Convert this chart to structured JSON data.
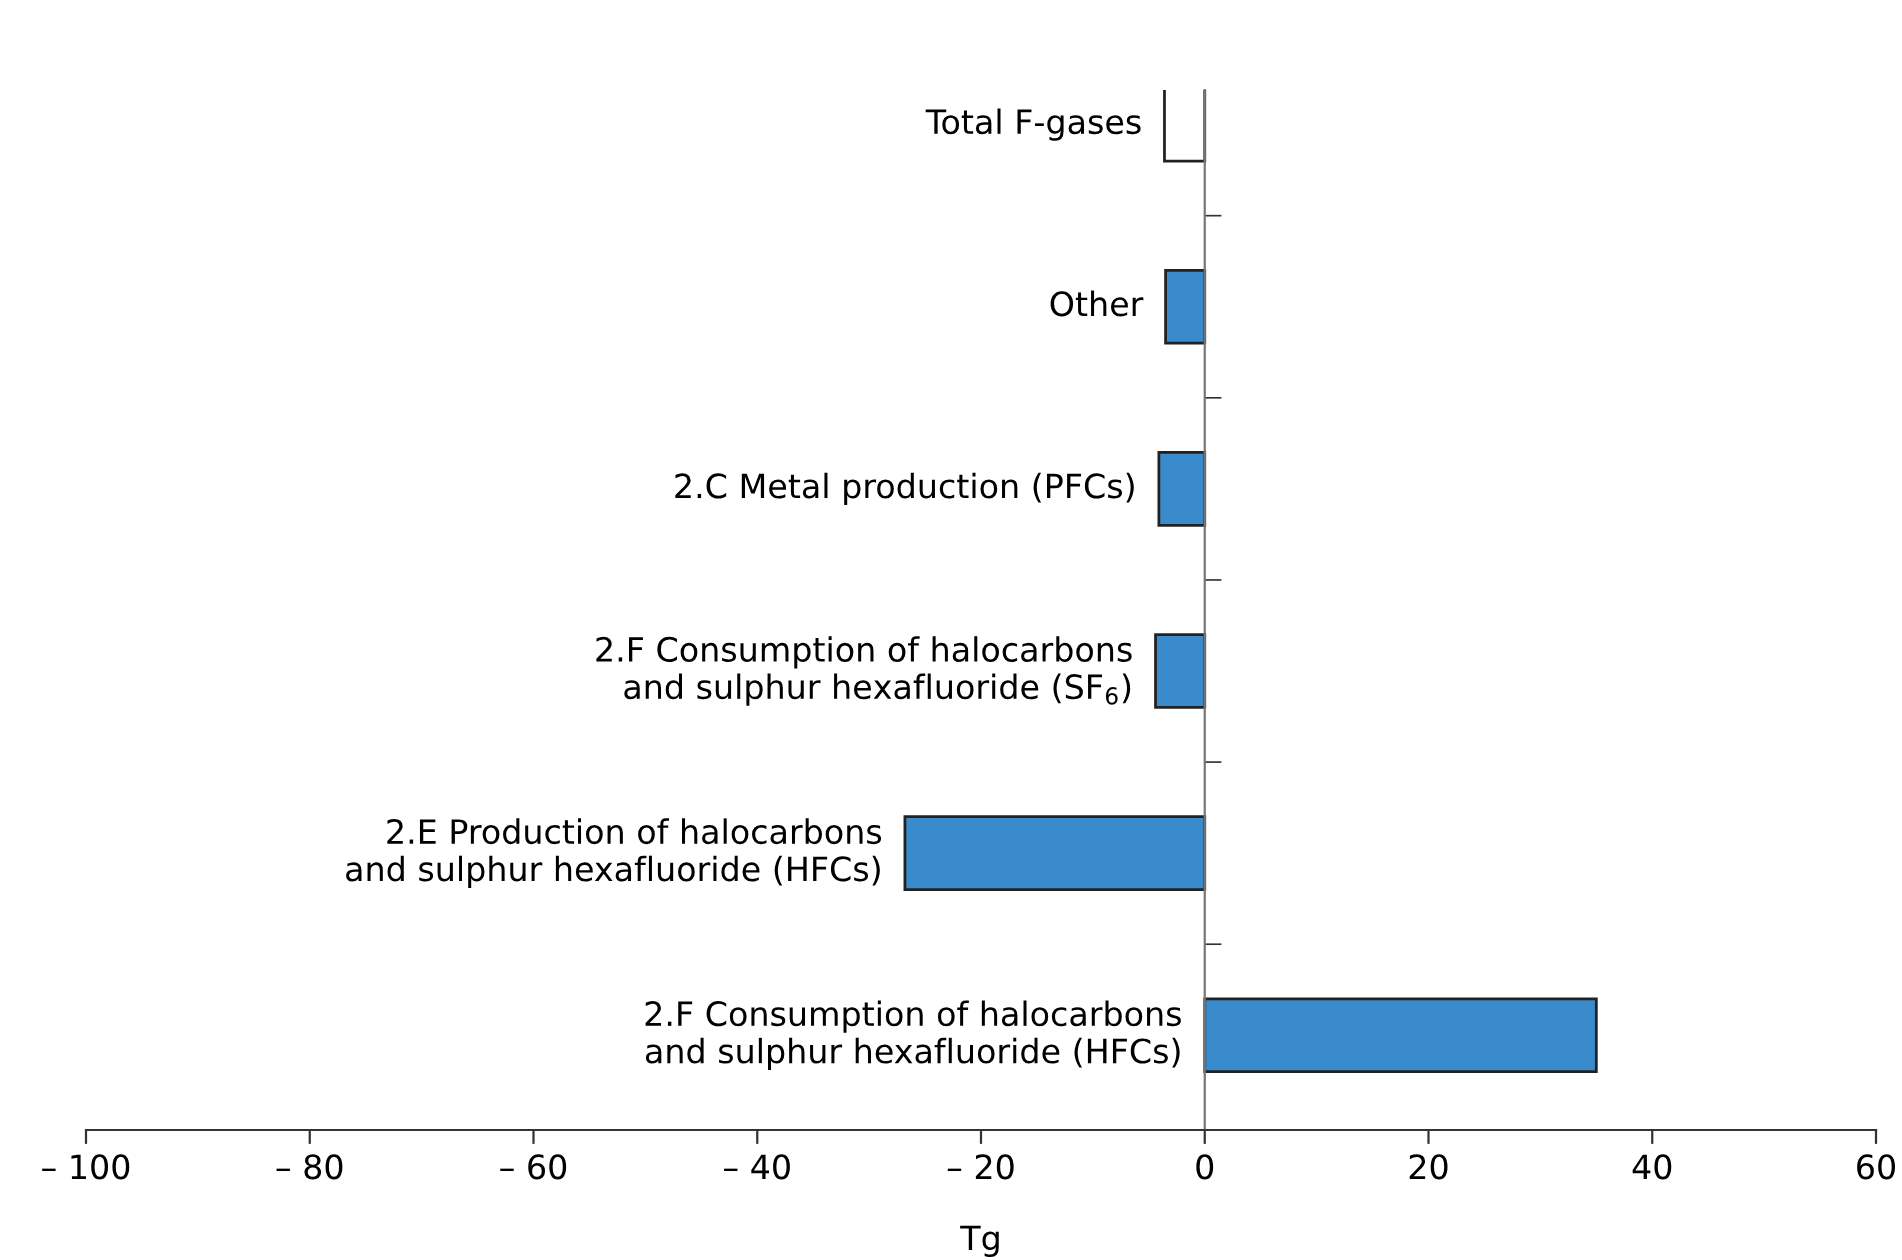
{
  "chart_data": {
    "type": "bar",
    "orientation": "horizontal",
    "xlabel": "Tg",
    "categories": [
      "Total F-gases",
      "Other",
      "2.C Metal production (PFCs)",
      "2.F Consumption of halocarbons\nand sulphur hexafluoride (SF$_{6}$)",
      "2.E Production of halocarbons\nand sulphur hexafluoride (HFCs)",
      "2.F Consumption of halocarbons\nand sulphur hexafluoride (HFCs)"
    ],
    "values": [
      -3.6,
      -3.5,
      -4.1,
      -4.4,
      -26.8,
      35
    ],
    "colors": [
      "#ffffff",
      "#3a8bcb",
      "#3a8bcb",
      "#3a8bcb",
      "#3a8bcb",
      "#3a8bcb"
    ],
    "xlim": [
      -100,
      60
    ],
    "xticks": [
      {
        "value": -100,
        "label": "– 100"
      },
      {
        "value": -80,
        "label": "– 80"
      },
      {
        "value": -60,
        "label": "– 60"
      },
      {
        "value": -40,
        "label": "– 40"
      },
      {
        "value": -20,
        "label": "– 20"
      },
      0,
      20,
      40,
      60
    ],
    "grid": false,
    "legend": false
  }
}
